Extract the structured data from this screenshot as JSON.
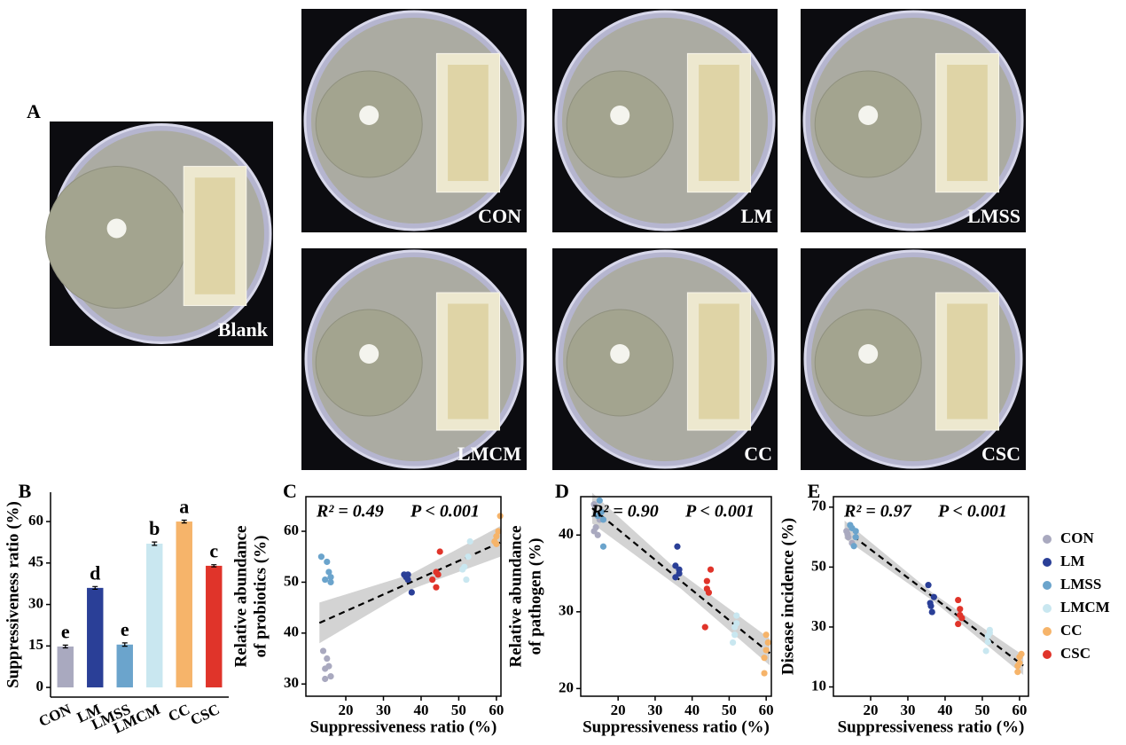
{
  "panels": {
    "A": {
      "letter": "A",
      "photos": [
        {
          "label": "Blank"
        },
        {
          "label": "CON"
        },
        {
          "label": "LM"
        },
        {
          "label": "LMSS"
        },
        {
          "label": "LMCM"
        },
        {
          "label": "CC"
        },
        {
          "label": "CSC"
        }
      ]
    }
  },
  "chart_data": [
    {
      "type": "bar",
      "panel": "B",
      "ylabel": "Suppressiveness ratio (%)",
      "categories": [
        "CON",
        "LM",
        "LMSS",
        "LMCM",
        "CC",
        "CSC"
      ],
      "values": [
        14.8,
        36,
        15.5,
        52,
        60,
        44
      ],
      "errors": [
        0.5,
        0.5,
        0.6,
        0.6,
        0.5,
        0.4
      ],
      "letters": [
        "e",
        "d",
        "e",
        "b",
        "a",
        "c"
      ],
      "colors": [
        "#a9a9bf",
        "#2a3f97",
        "#6ba4cc",
        "#c9e7f0",
        "#f6b46a",
        "#e0342a"
      ],
      "ylim": [
        -3.5,
        70.6
      ],
      "yticks": [
        0,
        15,
        30,
        45,
        60
      ]
    },
    {
      "type": "scatter",
      "panel": "C",
      "xlabel": "Suppressiveness ratio (%)",
      "ylabel": [
        "Relative abundance",
        "of probiotics (%)"
      ],
      "annotations": [
        "R² = 0.49",
        "P < 0.001"
      ],
      "xlim": [
        9.4,
        61.2
      ],
      "ylim": [
        27.6,
        66.8
      ],
      "xticks": [
        20,
        30,
        40,
        50,
        60
      ],
      "yticks": [
        30,
        40,
        50,
        60
      ],
      "fit": {
        "x": [
          13,
          37,
          61
        ],
        "y": [
          42,
          49.9,
          57.8
        ],
        "lower": [
          38,
          48.5,
          55
        ],
        "upper": [
          46,
          51.5,
          61
        ]
      },
      "series": [
        {
          "name": "CON",
          "color": "#a9a9bf",
          "x": [
            14,
            14.5,
            15,
            15.5,
            16,
            14.5
          ],
          "values": [
            36.5,
            31,
            35,
            33.5,
            31.5,
            33
          ]
        },
        {
          "name": "LM",
          "color": "#2a3f97",
          "x": [
            35.5,
            36,
            36.5,
            37.5,
            36.5
          ],
          "values": [
            51.5,
            51,
            51.5,
            48,
            50.5
          ]
        },
        {
          "name": "LMSS",
          "color": "#6ba4cc",
          "x": [
            13.5,
            15,
            15.5,
            16,
            14.5,
            16
          ],
          "values": [
            55,
            54,
            52,
            51,
            50.5,
            50
          ]
        },
        {
          "name": "LMCM",
          "color": "#c9e7f0",
          "x": [
            51.5,
            52,
            52.5,
            53,
            51
          ],
          "values": [
            53,
            50.5,
            55,
            58,
            52.5
          ]
        },
        {
          "name": "CC",
          "color": "#f6b46a",
          "x": [
            59.5,
            60,
            60.5,
            61,
            60
          ],
          "values": [
            58,
            59,
            60,
            63,
            57.5
          ]
        },
        {
          "name": "CSC",
          "color": "#e0342a",
          "x": [
            43,
            44,
            44.5,
            45,
            44
          ],
          "values": [
            50.5,
            49,
            51.5,
            56,
            52
          ]
        }
      ]
    },
    {
      "type": "scatter",
      "panel": "D",
      "xlabel": "Suppressiveness ratio (%)",
      "ylabel": [
        "Relative abundance",
        "of pathogen (%)"
      ],
      "annotations": [
        "R² = 0.90",
        "P < 0.001"
      ],
      "xlim": [
        9.9,
        61.4
      ],
      "ylim": [
        19,
        45
      ],
      "xticks": [
        20,
        30,
        40,
        50,
        60
      ],
      "yticks": [
        20,
        30,
        40
      ],
      "fit": {
        "x": [
          13,
          37,
          61
        ],
        "y": [
          43.5,
          34,
          24.6
        ],
        "lower": [
          41.5,
          33,
          23
        ],
        "upper": [
          45.5,
          35,
          26.5
        ]
      },
      "series": [
        {
          "name": "CON",
          "color": "#a9a9bf",
          "x": [
            13.5,
            14,
            14.5,
            15,
            13.5
          ],
          "values": [
            44,
            41,
            40,
            42,
            40.5
          ]
        },
        {
          "name": "LM",
          "color": "#2a3f97",
          "x": [
            35.5,
            36,
            36.5,
            36.5,
            35.5
          ],
          "values": [
            36,
            38.5,
            35.5,
            35,
            34.5
          ]
        },
        {
          "name": "LMSS",
          "color": "#6ba4cc",
          "x": [
            15,
            15.5,
            16,
            14.5,
            16
          ],
          "values": [
            44.5,
            43,
            38.5,
            42.5,
            42
          ]
        },
        {
          "name": "LMCM",
          "color": "#c9e7f0",
          "x": [
            51,
            51.5,
            52,
            51.5,
            52
          ],
          "values": [
            26,
            27,
            29.5,
            28,
            28.5
          ]
        },
        {
          "name": "CC",
          "color": "#f6b46a",
          "x": [
            59.5,
            60,
            60.5,
            59.5,
            60
          ],
          "values": [
            22,
            25,
            26,
            24,
            27
          ]
        },
        {
          "name": "CSC",
          "color": "#e0342a",
          "x": [
            43.5,
            44,
            44.5,
            45,
            44
          ],
          "values": [
            28,
            33,
            32.5,
            35.5,
            34
          ]
        }
      ]
    },
    {
      "type": "scatter",
      "panel": "E",
      "xlabel": "Suppressiveness ratio (%)",
      "ylabel": [
        "Disease incidence (%)"
      ],
      "annotations": [
        "R² = 0.97",
        "P < 0.001"
      ],
      "xlim": [
        10,
        62.4
      ],
      "ylim": [
        6.9,
        73.5
      ],
      "xticks": [
        20,
        30,
        40,
        50,
        60
      ],
      "yticks": [
        10,
        30,
        50,
        70
      ],
      "fit": {
        "x": [
          13,
          37,
          61
        ],
        "y": [
          62.5,
          39.8,
          17.1
        ],
        "lower": [
          59.5,
          38.5,
          14
        ],
        "upper": [
          65.5,
          41,
          20.5
        ]
      },
      "series": [
        {
          "name": "CON",
          "color": "#a9a9bf",
          "x": [
            13.5,
            14,
            14.5,
            15,
            13.8
          ],
          "values": [
            62,
            60,
            64,
            58,
            61
          ]
        },
        {
          "name": "LM",
          "color": "#2a3f97",
          "x": [
            35.5,
            36,
            36.5,
            37,
            36.2
          ],
          "values": [
            44,
            38,
            35,
            40,
            37
          ]
        },
        {
          "name": "LMSS",
          "color": "#6ba4cc",
          "x": [
            15,
            15.5,
            16,
            14.5,
            16
          ],
          "values": [
            63,
            57,
            60,
            64,
            62
          ]
        },
        {
          "name": "LMCM",
          "color": "#c9e7f0",
          "x": [
            51,
            51.5,
            52,
            51.5,
            52
          ],
          "values": [
            22,
            27,
            29,
            25,
            28
          ]
        },
        {
          "name": "CC",
          "color": "#f6b46a",
          "x": [
            59.5,
            60,
            60.5,
            59.5,
            60
          ],
          "values": [
            15,
            18,
            21,
            17,
            20
          ]
        },
        {
          "name": "CSC",
          "color": "#e0342a",
          "x": [
            43.5,
            44,
            44.5,
            43.5,
            44
          ],
          "values": [
            31,
            36,
            33,
            39,
            34
          ]
        }
      ]
    }
  ]
}
